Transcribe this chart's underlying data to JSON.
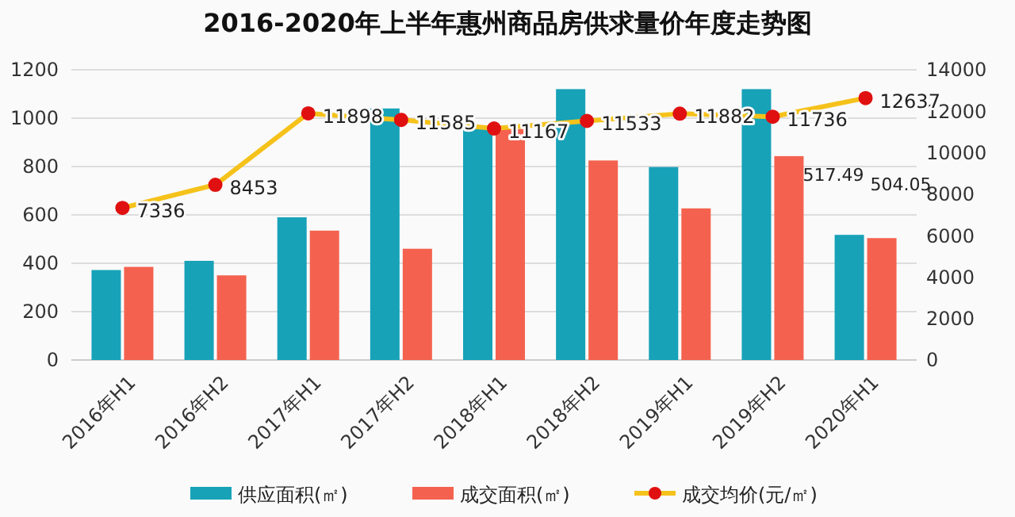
{
  "chart_data": {
    "type": "bar",
    "title": "2016-2020年上半年惠州商品房供求量价年度走势图",
    "categories": [
      "2016年H1",
      "2016年H2",
      "2017年H1",
      "2017年H2",
      "2018年H1",
      "2018年H2",
      "2019年H1",
      "2019年H2",
      "2020年H1"
    ],
    "series": [
      {
        "name": "供应面积(㎡)",
        "color": "#17a2b8",
        "values": [
          372,
          410,
          590,
          1040,
          960,
          1120,
          798,
          1120,
          517.49
        ],
        "value_labels": [
          null,
          null,
          null,
          null,
          null,
          null,
          null,
          null,
          "517.49"
        ]
      },
      {
        "name": "成交面积(㎡)",
        "color": "#f4624f",
        "values": [
          385,
          350,
          535,
          460,
          955,
          825,
          627,
          843,
          504.05
        ],
        "value_labels": [
          null,
          null,
          null,
          null,
          null,
          null,
          null,
          null,
          "504.05"
        ]
      },
      {
        "name": "成交均价(元/㎡)",
        "type": "line",
        "axis": "y2",
        "color": "#f5c21b",
        "marker": "circle",
        "values": [
          7336,
          8453,
          11898,
          11585,
          11167,
          11533,
          11882,
          11736,
          12637
        ],
        "value_labels": [
          "7336",
          "8453",
          "11898",
          "11585",
          "11167",
          "11533",
          "11882",
          "11736",
          "12637"
        ]
      }
    ],
    "ylim": [
      0,
      1200
    ],
    "yticks": [
      0,
      200,
      400,
      600,
      800,
      1000,
      1200
    ],
    "y2lim": [
      0,
      14000
    ],
    "y2ticks": [
      0,
      2000,
      4000,
      6000,
      8000,
      10000,
      12000,
      14000
    ],
    "grid": "y",
    "legend": "bottom"
  }
}
